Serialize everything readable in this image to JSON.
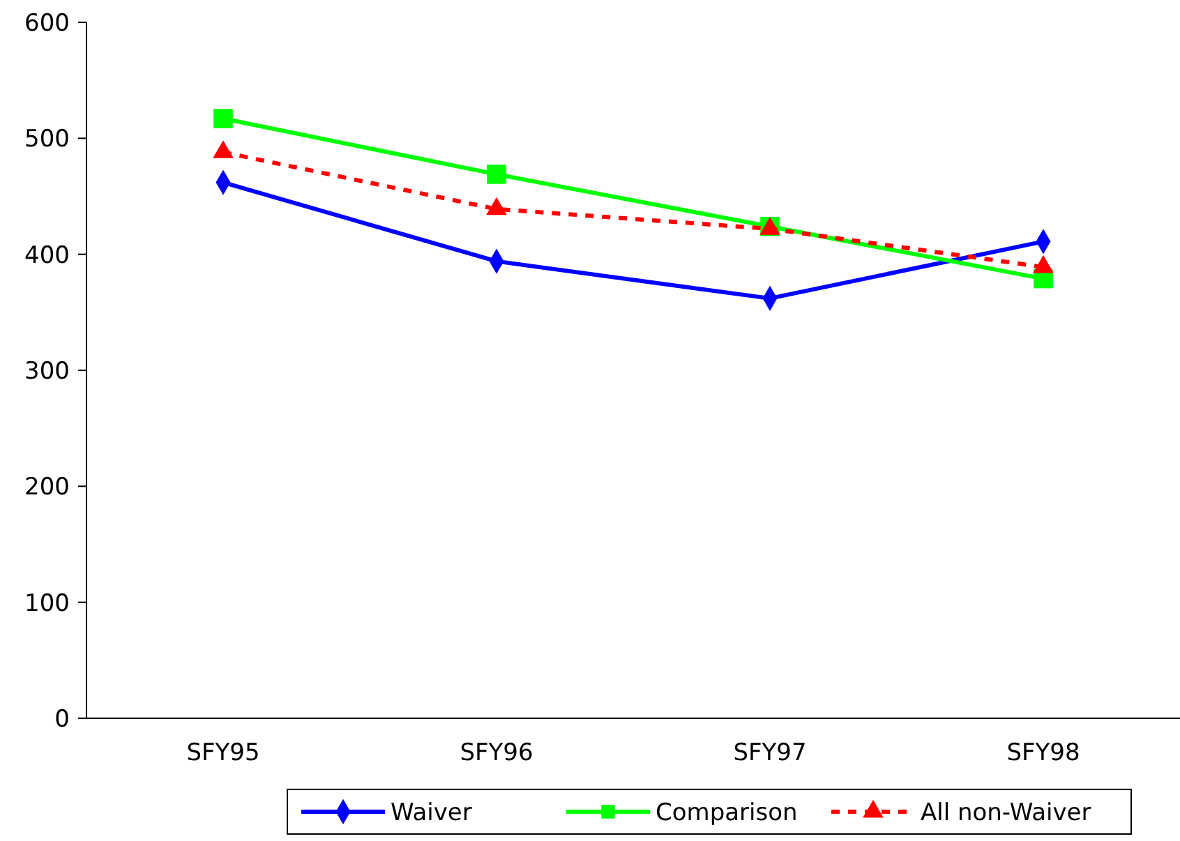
{
  "chart_data": {
    "type": "line",
    "categories": [
      "SFY95",
      "SFY96",
      "SFY97",
      "SFY98"
    ],
    "series": [
      {
        "name": "Waiver",
        "color": "#0000ff",
        "values": [
          462,
          394,
          362,
          411
        ],
        "marker": "diamond",
        "line_style": "solid"
      },
      {
        "name": "Comparison",
        "color": "#00ff00",
        "values": [
          517,
          469,
          424,
          379
        ],
        "marker": "square",
        "line_style": "solid"
      },
      {
        "name": "All non-Waiver",
        "color": "#ff0000",
        "values": [
          488,
          439,
          422,
          389
        ],
        "marker": "triangle",
        "line_style": "dashed"
      }
    ],
    "ylim": [
      0,
      600
    ],
    "yticks": [
      0,
      100,
      200,
      300,
      400,
      500,
      600
    ],
    "grid": false,
    "legend": "bottom"
  }
}
